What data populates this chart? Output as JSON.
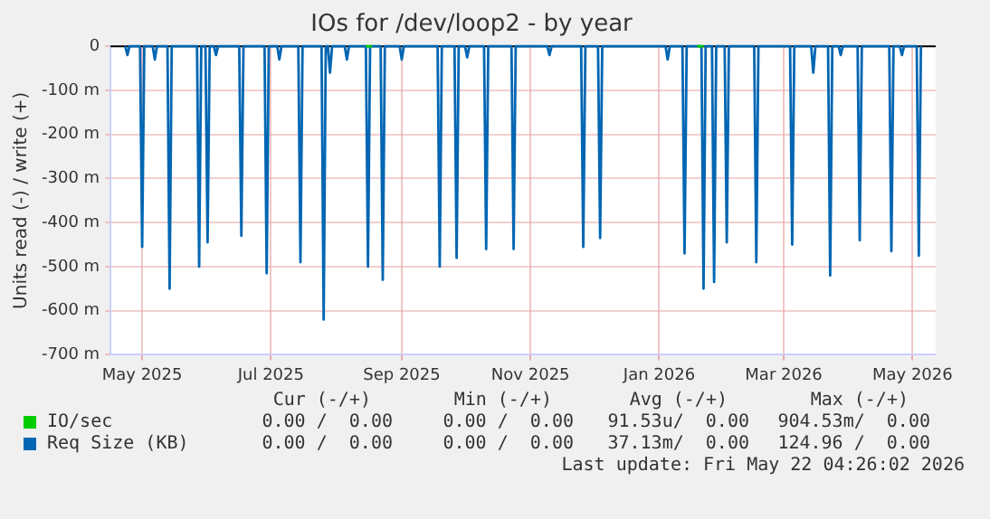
{
  "chart_data": {
    "type": "line",
    "title": "IOs for /dev/loop2 - by year",
    "ylabel": "Units read (-) / write (+)",
    "xlim": [
      "2025-04-16",
      "2026-05-12"
    ],
    "xticks": [
      {
        "value": "2025-05-01",
        "label": "May 2025"
      },
      {
        "value": "2025-07-01",
        "label": "Jul 2025"
      },
      {
        "value": "2025-09-01",
        "label": "Sep 2025"
      },
      {
        "value": "2025-11-01",
        "label": "Nov 2025"
      },
      {
        "value": "2026-01-01",
        "label": "Jan 2026"
      },
      {
        "value": "2026-03-01",
        "label": "Mar 2026"
      },
      {
        "value": "2026-05-01",
        "label": "May 2026"
      }
    ],
    "ylim": [
      -700,
      0
    ],
    "yticks": [
      0,
      {
        "value": -100,
        "label": "-100 m"
      },
      {
        "value": -200,
        "label": "-200 m"
      },
      {
        "value": -300,
        "label": "-300 m"
      },
      {
        "value": -400,
        "label": "-400 m"
      },
      {
        "value": -500,
        "label": "-500 m"
      },
      {
        "value": -600,
        "label": "-600 m"
      },
      {
        "value": -700,
        "label": "-700 m"
      }
    ],
    "grid": true,
    "legend": "bottom",
    "marker": "none",
    "line_style": "solid",
    "series": [
      {
        "name": "IO/sec",
        "color": "#00cc00",
        "x": [
          "2025-08-15",
          "2025-08-18",
          "2025-08-19",
          "2026-01-19",
          "2026-01-22"
        ],
        "values": [
          0,
          0,
          null,
          0,
          0
        ]
      },
      {
        "name": "Req Size (KB)",
        "color": "#0066b3",
        "x": [
          "2025-04-23",
          "2025-04-24",
          "2025-04-25",
          "2025-04-30",
          "2025-05-01",
          "2025-05-02",
          "2025-05-06",
          "2025-05-07",
          "2025-05-08",
          "2025-05-13",
          "2025-05-14",
          "2025-05-15",
          "2025-05-27",
          "2025-05-28",
          "2025-05-29",
          "2025-05-31",
          "2025-06-01",
          "2025-06-02",
          "2025-06-04",
          "2025-06-05",
          "2025-06-06",
          "2025-06-16",
          "2025-06-17",
          "2025-06-18",
          "2025-06-28",
          "2025-06-29",
          "2025-06-30",
          "2025-07-04",
          "2025-07-05",
          "2025-07-06",
          "2025-07-14",
          "2025-07-15",
          "2025-07-16",
          "2025-07-25",
          "2025-07-26",
          "2025-07-27",
          "2025-07-28",
          "2025-07-29",
          "2025-07-30",
          "2025-08-05",
          "2025-08-06",
          "2025-08-07",
          "2025-08-15",
          "2025-08-16",
          "2025-08-17",
          "2025-08-22",
          "2025-08-23",
          "2025-08-24",
          "2025-08-31",
          "2025-09-01",
          "2025-09-02",
          "2025-09-18",
          "2025-09-19",
          "2025-09-20",
          "2025-09-26",
          "2025-09-27",
          "2025-09-28",
          "2025-10-01",
          "2025-10-02",
          "2025-10-03",
          "2025-10-10",
          "2025-10-11",
          "2025-10-12",
          "2025-10-23",
          "2025-10-24",
          "2025-10-25",
          "2025-11-09",
          "2025-11-10",
          "2025-11-11",
          "2025-11-25",
          "2025-11-26",
          "2025-11-27",
          "2025-12-03",
          "2025-12-04",
          "2025-12-05",
          "2026-01-04",
          "2026-01-05",
          "2026-01-06",
          "2026-01-12",
          "2026-01-13",
          "2026-01-14",
          "2026-01-21",
          "2026-01-22",
          "2026-01-23",
          "2026-01-26",
          "2026-01-27",
          "2026-01-28",
          "2026-02-01",
          "2026-02-02",
          "2026-02-03",
          "2026-02-15",
          "2026-02-16",
          "2026-02-17",
          "2026-03-04",
          "2026-03-05",
          "2026-03-06",
          "2026-03-14",
          "2026-03-15",
          "2026-03-16",
          "2026-03-22",
          "2026-03-23",
          "2026-03-24",
          "2026-03-27",
          "2026-03-28",
          "2026-03-29",
          "2026-04-05",
          "2026-04-06",
          "2026-04-07",
          "2026-04-20",
          "2026-04-21",
          "2026-04-22",
          "2026-04-25",
          "2026-04-26",
          "2026-04-27",
          "2026-05-03",
          "2026-05-04",
          "2026-05-05"
        ],
        "values": [
          0,
          -20,
          0,
          0,
          -455,
          0,
          0,
          -30,
          0,
          0,
          -550,
          0,
          0,
          -500,
          0,
          0,
          -445,
          0,
          0,
          -20,
          0,
          0,
          -430,
          0,
          0,
          -515,
          0,
          0,
          -30,
          0,
          0,
          -490,
          0,
          0,
          -620,
          0,
          0,
          -60,
          0,
          0,
          -30,
          0,
          0,
          -500,
          0,
          0,
          -530,
          0,
          0,
          -30,
          0,
          0,
          -500,
          0,
          0,
          -480,
          0,
          0,
          -25,
          0,
          0,
          -460,
          0,
          0,
          -460,
          0,
          0,
          -20,
          0,
          0,
          -455,
          0,
          0,
          -435,
          0,
          0,
          -30,
          0,
          0,
          -470,
          0,
          0,
          -550,
          0,
          0,
          -535,
          0,
          0,
          -445,
          0,
          0,
          -490,
          0,
          0,
          -450,
          0,
          0,
          -60,
          0,
          0,
          -520,
          0,
          0,
          -20,
          0,
          0,
          -440,
          0,
          0,
          -465,
          0,
          0,
          -20,
          0,
          0,
          -475,
          0
        ]
      }
    ],
    "annotations": [
      "Cur (-/+)",
      "Min (-/+)",
      "Avg (-/+)",
      "Max (-/+)",
      "0.00 /  0.00",
      "0.00 /  0.00",
      "37.13m/  0.00",
      "124.96 /  0.00",
      "0.00 /  0.00",
      "0.00 /  0.00",
      "91.53u/  0.00",
      "904.53m/  0.00",
      "Last update: Fri May 22 04:26:02 2026"
    ]
  }
}
